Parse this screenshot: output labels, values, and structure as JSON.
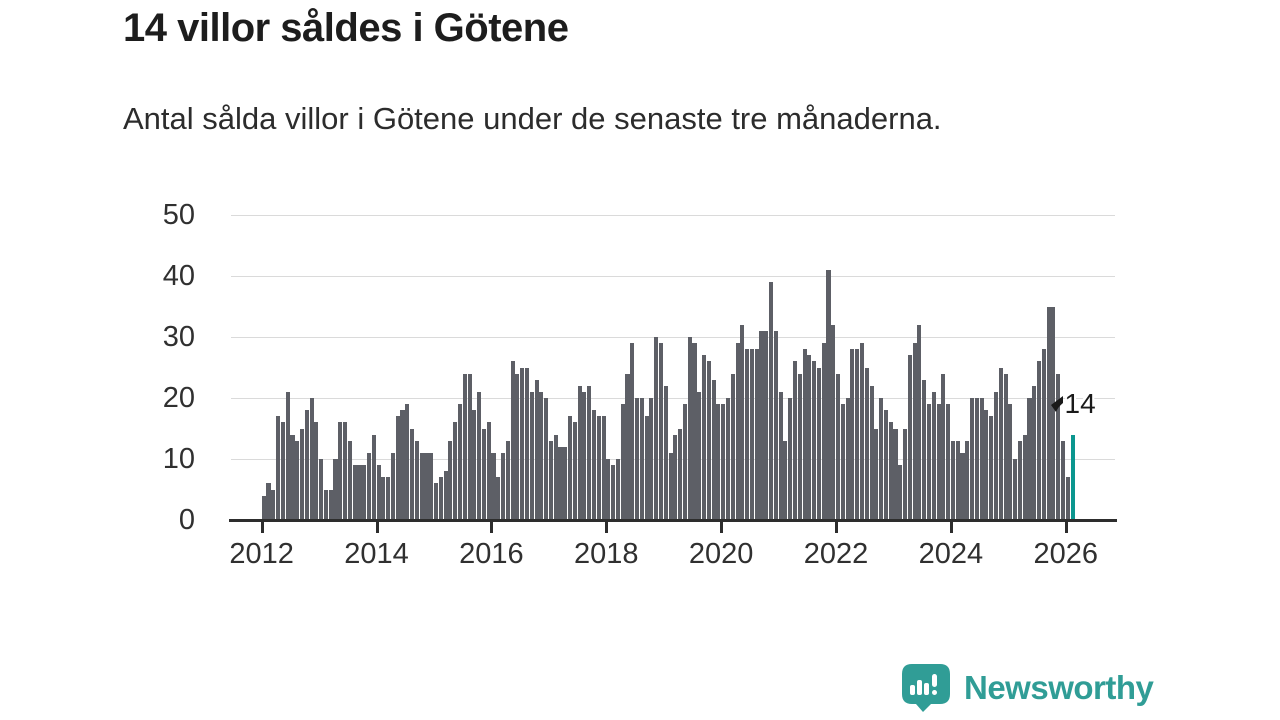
{
  "header": {
    "title": "14 villor såldes i Götene",
    "subtitle": "Antal sålda villor i Götene under de senaste tre månaderna."
  },
  "chart_data": {
    "type": "bar",
    "title": "14 villor såldes i Götene",
    "subtitle": "Antal sålda villor i Götene under de senaste tre månaderna.",
    "frequency": "monthly",
    "start_month": "2012-01",
    "end_month": "2026-02",
    "values": [
      4,
      6,
      5,
      17,
      16,
      21,
      14,
      13,
      15,
      18,
      20,
      16,
      10,
      5,
      5,
      10,
      16,
      16,
      13,
      9,
      9,
      9,
      11,
      14,
      9,
      7,
      7,
      11,
      17,
      18,
      19,
      15,
      13,
      11,
      11,
      11,
      6,
      7,
      8,
      13,
      16,
      19,
      24,
      24,
      18,
      21,
      15,
      16,
      11,
      7,
      11,
      13,
      26,
      24,
      25,
      25,
      21,
      23,
      21,
      20,
      13,
      14,
      12,
      12,
      17,
      16,
      22,
      21,
      22,
      18,
      17,
      17,
      10,
      9,
      10,
      19,
      24,
      29,
      20,
      20,
      17,
      20,
      30,
      29,
      22,
      11,
      14,
      15,
      19,
      30,
      29,
      21,
      27,
      26,
      23,
      19,
      19,
      20,
      24,
      29,
      32,
      28,
      28,
      28,
      31,
      31,
      39,
      31,
      21,
      13,
      20,
      26,
      24,
      28,
      27,
      26,
      25,
      29,
      41,
      32,
      24,
      19,
      20,
      28,
      28,
      29,
      25,
      22,
      15,
      20,
      18,
      16,
      15,
      9,
      15,
      27,
      29,
      32,
      23,
      19,
      21,
      19,
      24,
      19,
      13,
      13,
      11,
      13,
      20,
      20,
      20,
      18,
      17,
      21,
      25,
      24,
      19,
      10,
      13,
      14,
      20,
      22,
      26,
      28,
      35,
      35,
      24,
      13,
      7,
      14
    ],
    "highlight": {
      "index": 169,
      "value": 14,
      "label": "14"
    },
    "y_ticks": [
      0,
      10,
      20,
      30,
      40,
      50
    ],
    "ylim": [
      0,
      50
    ],
    "x_tick_years": [
      2012,
      2014,
      2016,
      2018,
      2020,
      2022,
      2024,
      2026
    ],
    "x_tick_labels": [
      "2012",
      "2014",
      "2016",
      "2018",
      "2020",
      "2022",
      "2024",
      "2026"
    ],
    "grid": true,
    "legend": "none",
    "bar_color": "#5d5f66",
    "highlight_color": "#0b968f",
    "axis_color": "#2d2d2d",
    "gridline_color": "#dadada"
  },
  "annotation": {
    "label": "14"
  },
  "footer": {
    "brand": "Newsworthy",
    "brand_color": "#309d96",
    "logo_icon": "bar-chart-badge"
  }
}
